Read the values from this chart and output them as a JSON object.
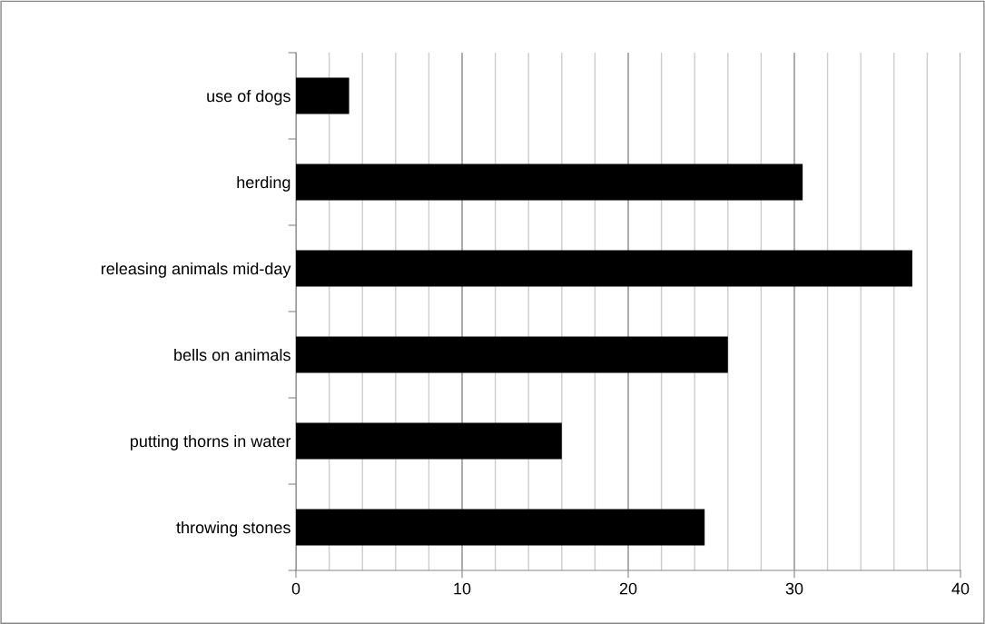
{
  "chart_data": {
    "type": "bar",
    "orientation": "horizontal",
    "categories": [
      "use of dogs",
      "herding",
      "releasing animals mid-day",
      "bells on animals",
      "putting thorns in water",
      "throwing stones"
    ],
    "values": [
      3.2,
      30.5,
      37.1,
      26,
      16,
      24.6
    ],
    "color": "#000000",
    "xlim": [
      0,
      40
    ],
    "xticks": [
      0,
      {
        "value": 2,
        "label": null
      },
      {
        "value": 4,
        "label": null
      },
      {
        "value": 6,
        "label": null
      },
      {
        "value": 8,
        "label": null
      },
      10,
      {
        "value": 12,
        "label": null
      },
      {
        "value": 14,
        "label": null
      },
      {
        "value": 16,
        "label": null
      },
      {
        "value": 18,
        "label": null
      },
      20,
      {
        "value": 22,
        "label": null
      },
      {
        "value": 24,
        "label": null
      },
      {
        "value": 26,
        "label": null
      },
      {
        "value": 28,
        "label": null
      },
      30,
      {
        "value": 32,
        "label": null
      },
      {
        "value": 34,
        "label": null
      },
      {
        "value": 36,
        "label": null
      },
      {
        "value": 38,
        "label": null
      },
      40
    ],
    "grid": "x"
  }
}
